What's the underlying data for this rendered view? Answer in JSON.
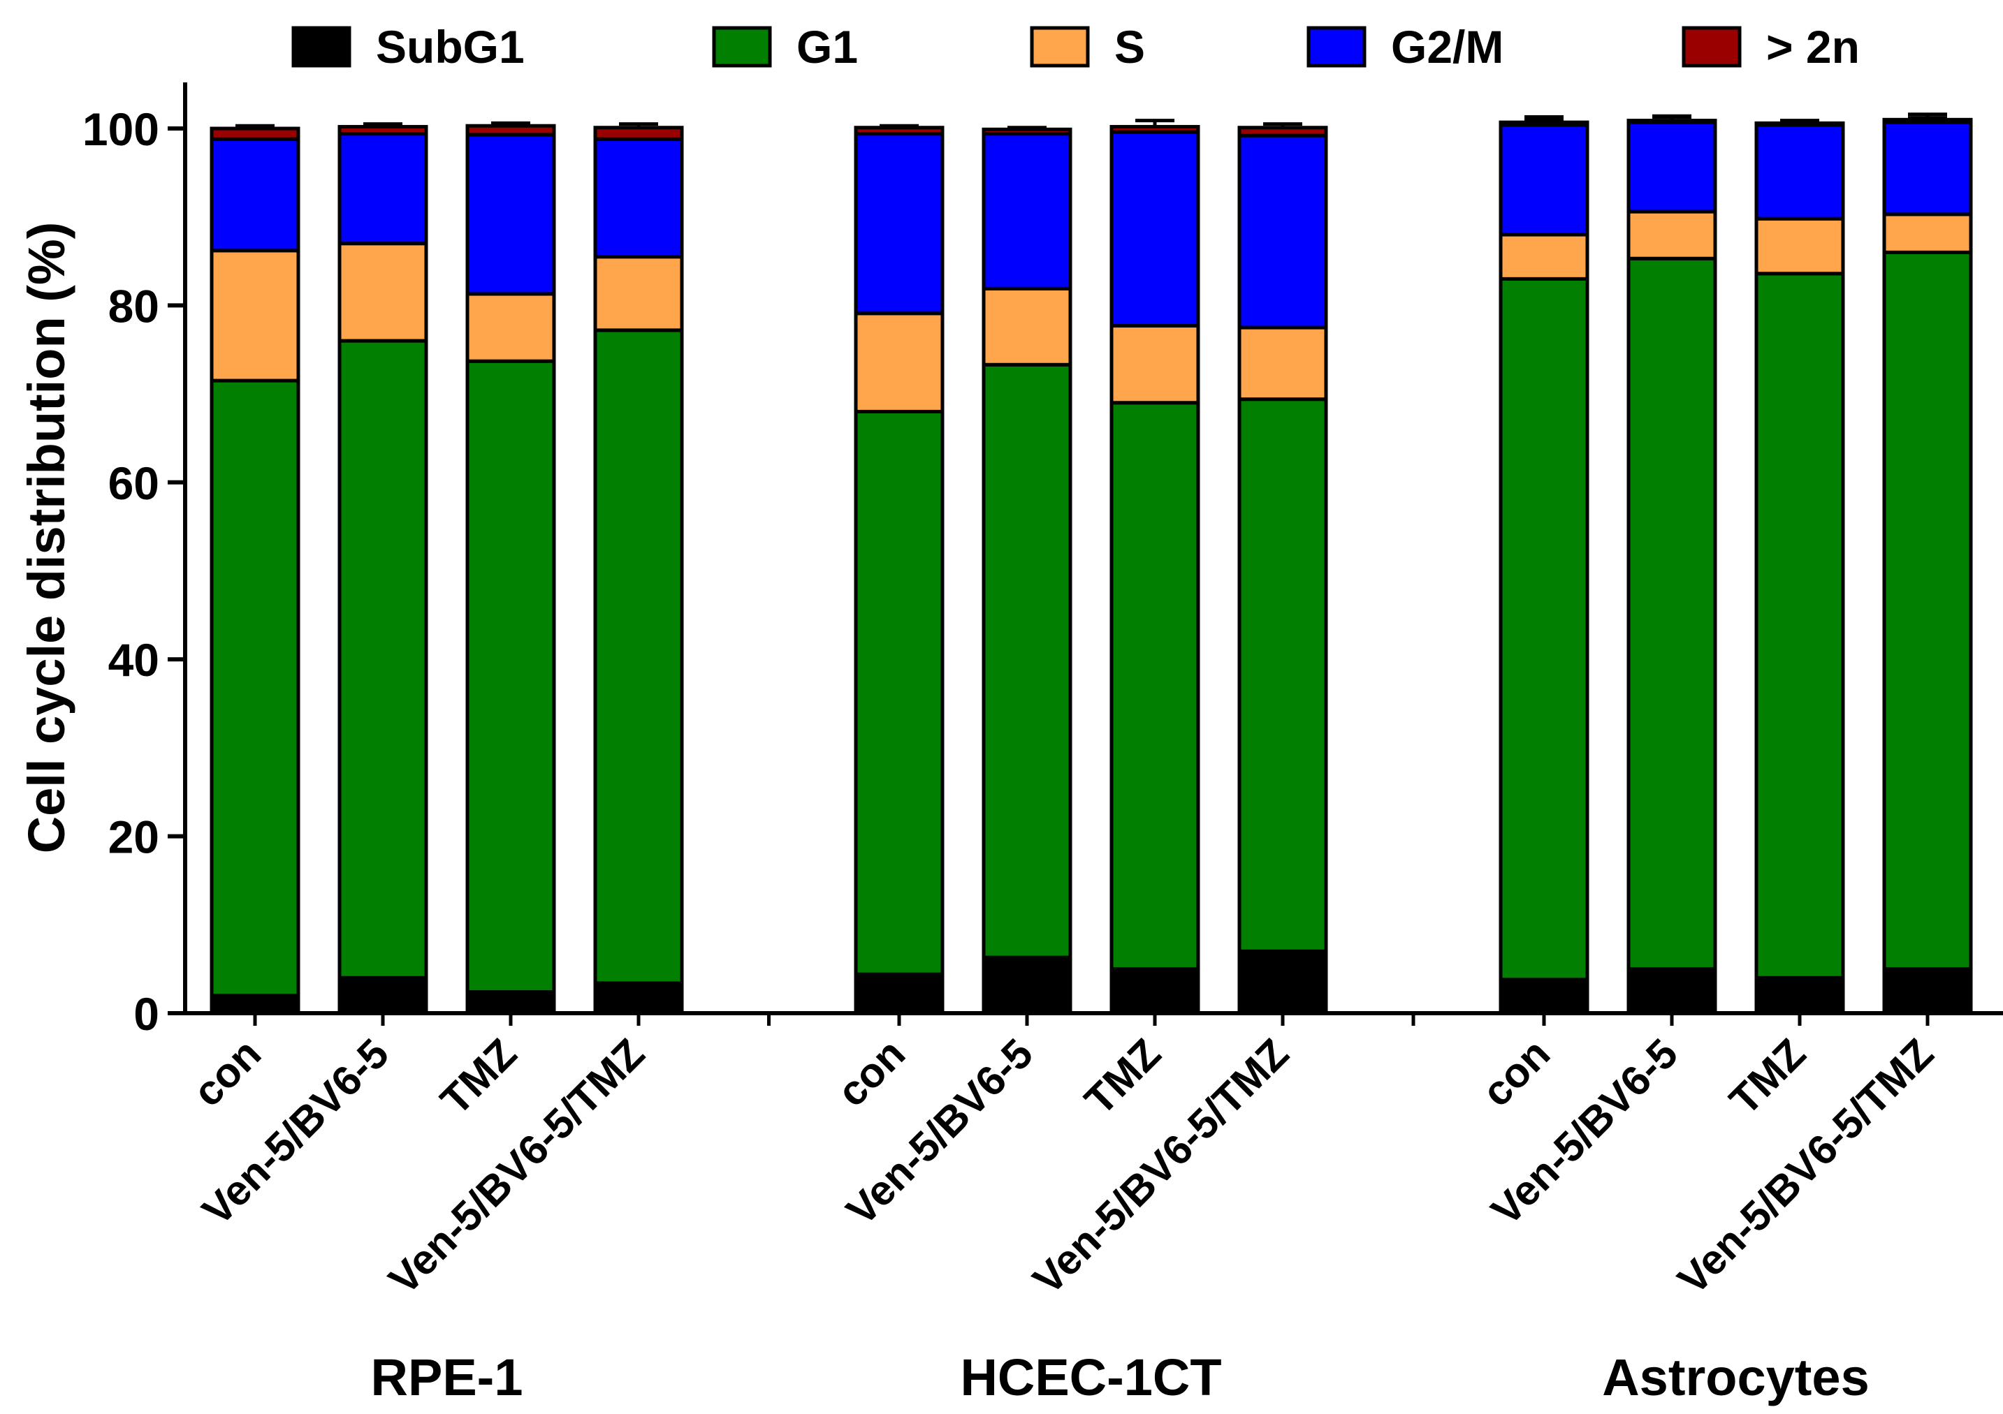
{
  "chart_data": {
    "type": "bar",
    "stacked": true,
    "title": "",
    "xlabel": "",
    "ylabel": "Cell cycle distribution (%)",
    "ylim": [
      0,
      100
    ],
    "yticks": [
      "0",
      "20",
      "40",
      "60",
      "80",
      "100"
    ],
    "legend": [
      {
        "name": "SubG1",
        "color": "#000000"
      },
      {
        "name": "G1",
        "color": "#007f00"
      },
      {
        "name": "S",
        "color": "#ffa54b"
      },
      {
        "name": "G2/M",
        "color": "#0000ff"
      },
      {
        "name": "> 2n",
        "color": "#9b0000"
      }
    ],
    "groups": [
      {
        "name": "RPE-1",
        "bars": [
          {
            "label": "con",
            "values": [
              2.0,
              69.5,
              14.7,
              12.6,
              1.2
            ],
            "errors": [
              0.3,
              0.7,
              0.5,
              0.4,
              0.3
            ]
          },
          {
            "label": "Ven-5/BV6-5",
            "values": [
              4.0,
              72.0,
              11.0,
              12.4,
              0.8
            ],
            "errors": [
              0.3,
              2.0,
              1.0,
              0.6,
              0.3
            ]
          },
          {
            "label": "TMZ",
            "values": [
              2.4,
              71.3,
              7.6,
              18.0,
              1.0
            ],
            "errors": [
              0.3,
              1.5,
              1.2,
              0.5,
              0.3
            ]
          },
          {
            "label": "Ven-5/BV6-5/TMZ",
            "values": [
              3.4,
              73.8,
              8.3,
              13.3,
              1.3
            ],
            "errors": [
              0.3,
              1.9,
              0.6,
              0.5,
              0.4
            ]
          }
        ]
      },
      {
        "name": "HCEC-1CT",
        "bars": [
          {
            "label": "con",
            "values": [
              4.4,
              63.6,
              11.1,
              20.3,
              0.7
            ],
            "errors": [
              0.3,
              1.3,
              0.7,
              0.4,
              0.2
            ]
          },
          {
            "label": "Ven-5/BV6-5",
            "values": [
              6.3,
              67.0,
              8.6,
              17.5,
              0.5
            ],
            "errors": [
              0.4,
              2.0,
              0.5,
              0.4,
              0.2
            ]
          },
          {
            "label": "TMZ",
            "values": [
              5.0,
              64.0,
              8.7,
              21.9,
              0.6
            ],
            "errors": [
              0.3,
              1.8,
              0.7,
              0.5,
              0.7
            ]
          },
          {
            "label": "Ven-5/BV6-5/TMZ",
            "values": [
              7.0,
              62.4,
              8.1,
              21.7,
              0.9
            ],
            "errors": [
              0.4,
              1.2,
              0.6,
              0.5,
              0.4
            ]
          }
        ]
      },
      {
        "name": "Astrocytes",
        "bars": [
          {
            "label": "con",
            "values": [
              3.8,
              79.2,
              5.0,
              12.4,
              0.3
            ],
            "errors": [
              0.3,
              1.6,
              0.4,
              0.6,
              0.6
            ]
          },
          {
            "label": "Ven-5/BV6-5",
            "values": [
              5.0,
              80.3,
              5.3,
              10.1,
              0.2
            ],
            "errors": [
              0.3,
              1.4,
              0.5,
              0.6,
              0.5
            ]
          },
          {
            "label": "TMZ",
            "values": [
              4.0,
              79.6,
              6.2,
              10.6,
              0.2
            ],
            "errors": [
              0.3,
              0.9,
              0.4,
              0.4,
              0.3
            ]
          },
          {
            "label": "Ven-5/BV6-5/TMZ",
            "values": [
              5.0,
              81.0,
              4.3,
              10.4,
              0.3
            ],
            "errors": [
              0.5,
              2.0,
              0.3,
              0.5,
              0.6
            ]
          }
        ]
      }
    ]
  }
}
